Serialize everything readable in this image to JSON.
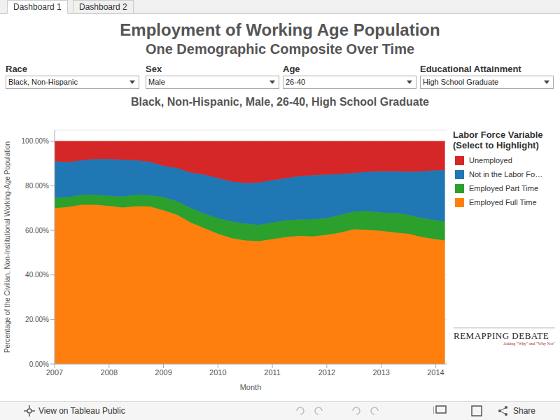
{
  "tabs": [
    "Dashboard 1",
    "Dashboard 2"
  ],
  "title": "Employment of Working Age Population",
  "subtitle": "One Demographic Composite Over Time",
  "filters": [
    {
      "label": "Race",
      "value": "Black, Non-Hispanic"
    },
    {
      "label": "Sex",
      "value": "Male"
    },
    {
      "label": "Age",
      "value": "26-40"
    },
    {
      "label": "Educational Attainment",
      "value": "High School Graduate"
    }
  ],
  "logo": {
    "name": "REMAPPING DEBATE",
    "tagline": "Asking \"Why\" and \"Why Not\""
  },
  "footer": {
    "link": "View on Tableau Public",
    "share": "Share"
  },
  "chart_data": {
    "type": "area",
    "stacked": true,
    "grid": true,
    "title": "Black, Non-Hispanic, Male, 26-40, High School Graduate",
    "x_label": "Month",
    "y_label": "Percentage of the Civilian, Non-Institutional Working-Age Population",
    "legend_title": [
      "Labor Force Variable",
      "(Select to Highlight)"
    ],
    "legend": "right",
    "x": [
      2007.0,
      2007.25,
      2007.5,
      2007.75,
      2008.0,
      2008.25,
      2008.5,
      2008.75,
      2009.0,
      2009.25,
      2009.5,
      2009.75,
      2010.0,
      2010.25,
      2010.5,
      2010.75,
      2011.0,
      2011.25,
      2011.5,
      2011.75,
      2012.0,
      2012.25,
      2012.5,
      2012.75,
      2013.0,
      2013.25,
      2013.5,
      2013.75,
      2014.0,
      2014.17
    ],
    "xlim": [
      2007,
      2014.2
    ],
    "xticks": [
      2007,
      2008,
      2009,
      2010,
      2011,
      2012,
      2013,
      2014
    ],
    "ylim": [
      0,
      105
    ],
    "yticks": [
      {
        "value": 0,
        "label": "0.00%"
      },
      {
        "value": 20,
        "label": "20.00%"
      },
      {
        "value": 40,
        "label": "40.00%"
      },
      {
        "value": 60,
        "label": "60.00%"
      },
      {
        "value": 80,
        "label": "80.00%"
      },
      {
        "value": 100,
        "label": "100.00%"
      }
    ],
    "series": [
      {
        "name": "Unemployed",
        "color": "#d62728",
        "values": [
          9,
          9.3,
          8.5,
          8,
          8,
          8.3,
          8.5,
          9.2,
          11,
          12,
          14,
          15,
          16.5,
          18,
          18.7,
          18.5,
          17.5,
          16.5,
          15.7,
          15.2,
          15,
          14.7,
          14.2,
          13.7,
          13.5,
          13.5,
          13.7,
          13.5,
          13,
          13
        ]
      },
      {
        "name": "Not in the Labor Fo…",
        "color": "#1f77b4",
        "values": [
          16.5,
          15.7,
          15.5,
          16,
          16.5,
          16.5,
          15.5,
          15,
          14,
          15,
          16,
          17.5,
          18,
          18,
          18.3,
          19,
          19,
          19,
          19.5,
          19.8,
          19.5,
          18.3,
          17.3,
          17.6,
          18.5,
          18.7,
          19.3,
          21,
          22.5,
          23
        ]
      },
      {
        "name": "Employed Part Time",
        "color": "#2ca02c",
        "values": [
          4.5,
          4.5,
          4.5,
          4.5,
          4.5,
          4.9,
          5.2,
          5.1,
          6,
          6,
          6.5,
          6.5,
          7,
          7.5,
          7.5,
          7.3,
          7.5,
          7.5,
          7.3,
          7.7,
          7.5,
          8,
          8,
          8.5,
          8.2,
          8.8,
          8.5,
          8.5,
          8.5,
          8.5
        ]
      },
      {
        "name": "Employed Full Time",
        "color": "#ff7f0e",
        "values": [
          70,
          70.5,
          71.5,
          71.5,
          71,
          70.3,
          70.8,
          70.7,
          69,
          67,
          63.5,
          61,
          58.5,
          56.5,
          55.5,
          55.2,
          56,
          57,
          57.5,
          57.3,
          58,
          59,
          60.5,
          60.2,
          59.8,
          59,
          58.5,
          57,
          56,
          55.5
        ]
      }
    ]
  }
}
